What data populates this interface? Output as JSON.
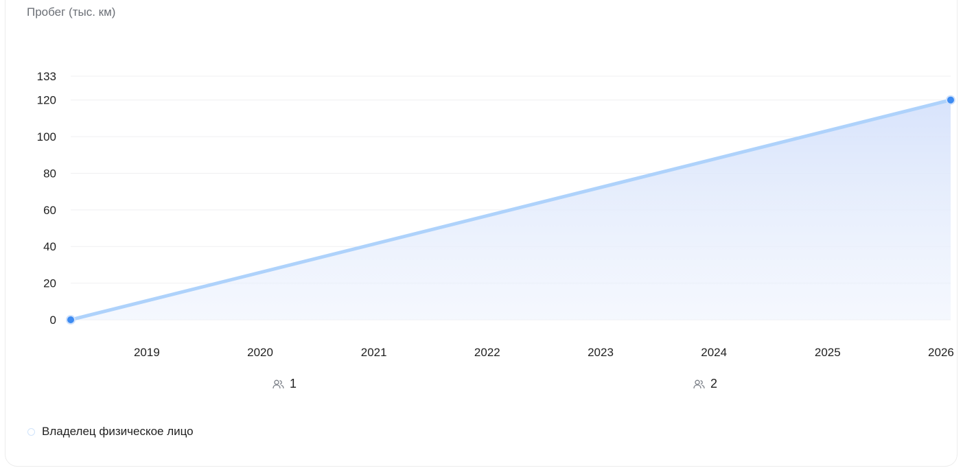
{
  "chart_data": {
    "type": "area",
    "ylabel": "Пробег (тыс. км)",
    "ylim": [
      0,
      133
    ],
    "y_ticks": [
      0,
      20,
      40,
      60,
      80,
      100,
      120,
      133
    ],
    "xlim": [
      "2018-05-01",
      "2026-02-01"
    ],
    "x_ticks": [
      "2019",
      "2020",
      "2021",
      "2022",
      "2023",
      "2024",
      "2025",
      "2026"
    ],
    "series": [
      {
        "points": [
          {
            "x": "2018-05-01",
            "y": 0
          },
          {
            "x": "2026-02-01",
            "y": 120
          }
        ]
      }
    ],
    "line_color": "#aed2fb",
    "marker_color": "#3d8bf2",
    "area_color": "#dbe6fb",
    "grid": "horizontal"
  },
  "owners": [
    {
      "icon": "owners-icon",
      "count": "1"
    },
    {
      "icon": "owners-icon",
      "count": "2"
    }
  ],
  "legend": {
    "label": "Владелец физическое лицо"
  }
}
